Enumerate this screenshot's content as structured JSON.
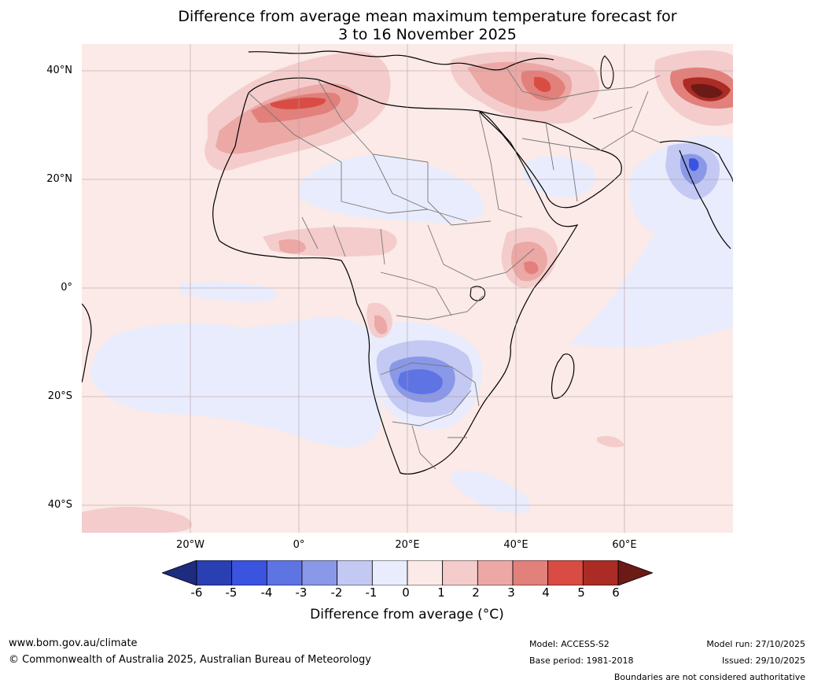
{
  "title": {
    "line1": "Difference from average mean maximum temperature forecast for",
    "line2": "3 to 16 November 2025"
  },
  "map": {
    "lat_labels": [
      "40°N",
      "20°N",
      "0°",
      "20°S",
      "40°S"
    ],
    "lon_labels": [
      "20°W",
      "0°",
      "20°E",
      "40°E",
      "60°E"
    ]
  },
  "colorbar": {
    "ticks": [
      "-6",
      "-5",
      "-4",
      "-3",
      "-2",
      "-1",
      "0",
      "1",
      "2",
      "3",
      "4",
      "5",
      "6"
    ],
    "colors": [
      "#1d2c7e",
      "#2a3fb1",
      "#3a54e0",
      "#5f74e3",
      "#8a98e8",
      "#c3c9f3",
      "#e9ecfc",
      "#fbeae7",
      "#f4cccc",
      "#eba8a5",
      "#e2807b",
      "#d94c44",
      "#ab2b25",
      "#6b1a16"
    ],
    "label": "Difference from average ($^\\circ$C)",
    "label_text": "Difference from average (°C)"
  },
  "footer": {
    "url": "www.bom.gov.au/climate",
    "copyright": "© Commonwealth of Australia 2025, Australian Bureau of Meteorology",
    "model": "Model: ACCESS-S2",
    "base_period": "Base period: 1981-2018",
    "model_run": "Model run: 27/10/2025",
    "issued": "Issued: 29/10/2025",
    "disclaimer": "Boundaries are not considered authoritative"
  }
}
